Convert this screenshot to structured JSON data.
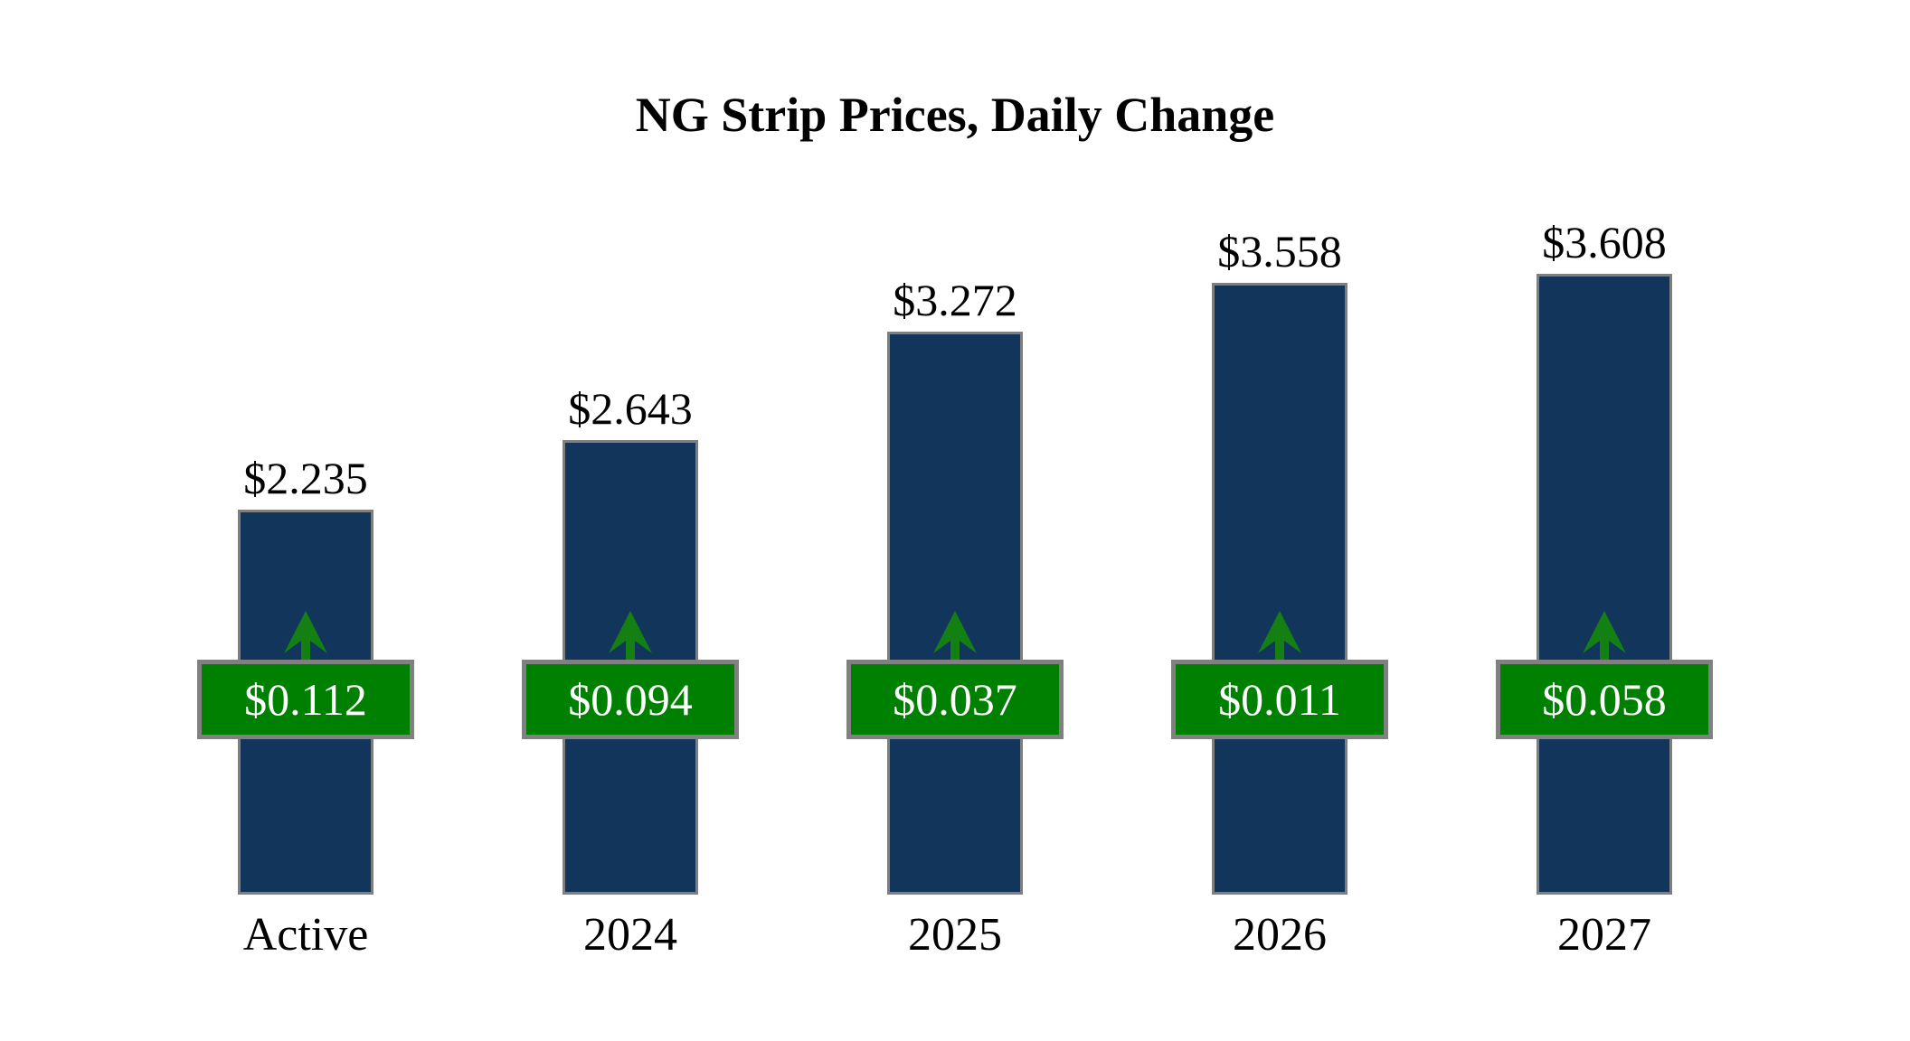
{
  "chart_data": {
    "type": "bar",
    "title": "NG Strip Prices, Daily Change",
    "xlabel": "",
    "ylabel": "",
    "ylim": [
      0,
      3.8
    ],
    "grid": false,
    "legend": "none",
    "axes_visible": false,
    "categories": [
      "Active",
      "2024",
      "2025",
      "2026",
      "2027"
    ],
    "series": [
      {
        "name": "Strip Price ($)",
        "values": [
          2.235,
          2.643,
          3.272,
          3.558,
          3.608
        ]
      },
      {
        "name": "Daily Change ($)",
        "values": [
          0.112,
          0.094,
          0.037,
          0.011,
          0.058
        ]
      }
    ],
    "bars": [
      {
        "category": "Active",
        "price": 2.235,
        "price_label": "$2.235",
        "change": 0.112,
        "change_label": "$0.112",
        "direction": "up"
      },
      {
        "category": "2024",
        "price": 2.643,
        "price_label": "$2.643",
        "change": 0.094,
        "change_label": "$0.094",
        "direction": "up"
      },
      {
        "category": "2025",
        "price": 3.272,
        "price_label": "$3.272",
        "change": 0.037,
        "change_label": "$0.037",
        "direction": "up"
      },
      {
        "category": "2026",
        "price": 3.558,
        "price_label": "$3.558",
        "change": 0.011,
        "change_label": "$0.011",
        "direction": "up"
      },
      {
        "category": "2027",
        "price": 3.608,
        "price_label": "$3.608",
        "change": 0.058,
        "change_label": "$0.058",
        "direction": "up"
      }
    ],
    "colors": {
      "background": "#ffffff",
      "bar": "#12355c",
      "bar_border": "#7f7f7f",
      "badge": "#008000",
      "badge_border": "#808080",
      "badge_text": "#ffffff",
      "arrow": "#148014",
      "text": "#000000"
    }
  }
}
